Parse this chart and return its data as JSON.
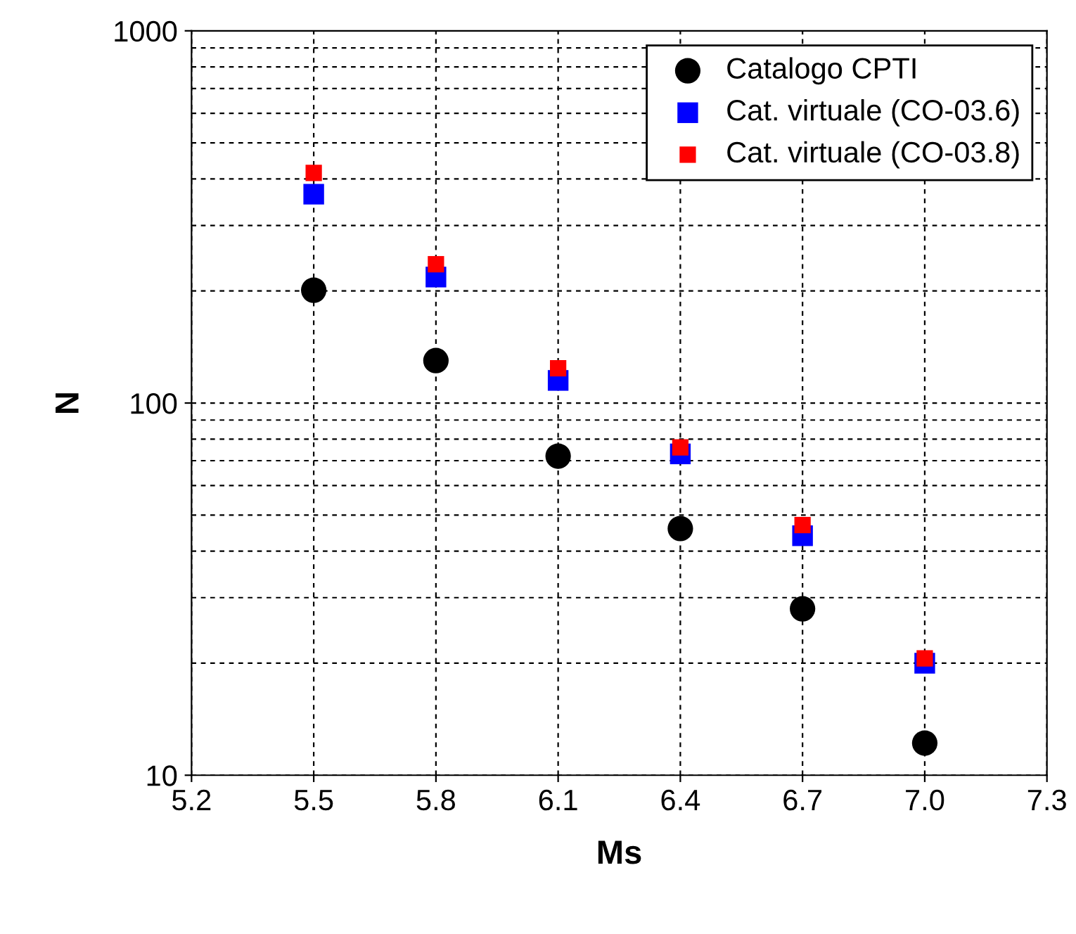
{
  "chart_data": {
    "type": "scatter",
    "xlabel": "Ms",
    "ylabel": "N",
    "log": "y",
    "grid": true,
    "legend": "top right",
    "xlim": [
      5.2,
      7.3
    ],
    "xticks": [
      {
        "value": 5.2,
        "label": "5.2"
      },
      {
        "value": 5.5,
        "label": "5.5"
      },
      {
        "value": 5.8,
        "label": "5.8"
      },
      {
        "value": 6.1,
        "label": "6.1"
      },
      {
        "value": 6.4,
        "label": "6.4"
      },
      {
        "value": 6.7,
        "label": "6.7"
      },
      {
        "value": 7.0,
        "label": "7.0"
      },
      {
        "value": 7.3,
        "label": "7.3"
      }
    ],
    "ylim": [
      10,
      1000
    ],
    "yticks": [
      10,
      100,
      1000
    ],
    "x": [
      5.5,
      5.8,
      6.1,
      6.4,
      6.7,
      7.0
    ],
    "series": [
      {
        "name": "Catalogo CPTI",
        "color": "#000000",
        "marker": "circle",
        "values": [
          201,
          130,
          72,
          46,
          28,
          12.2
        ]
      },
      {
        "name": "Cat. virtuale (CO-03.6)",
        "color": "#0000ff",
        "marker": "square",
        "values": [
          364,
          218,
          115,
          73,
          44,
          20
        ]
      },
      {
        "name": "Cat. virtuale (CO-03.8)",
        "color": "#ff0000",
        "marker": "square",
        "values": [
          415,
          236,
          124,
          76,
          47,
          20.6
        ]
      }
    ]
  }
}
